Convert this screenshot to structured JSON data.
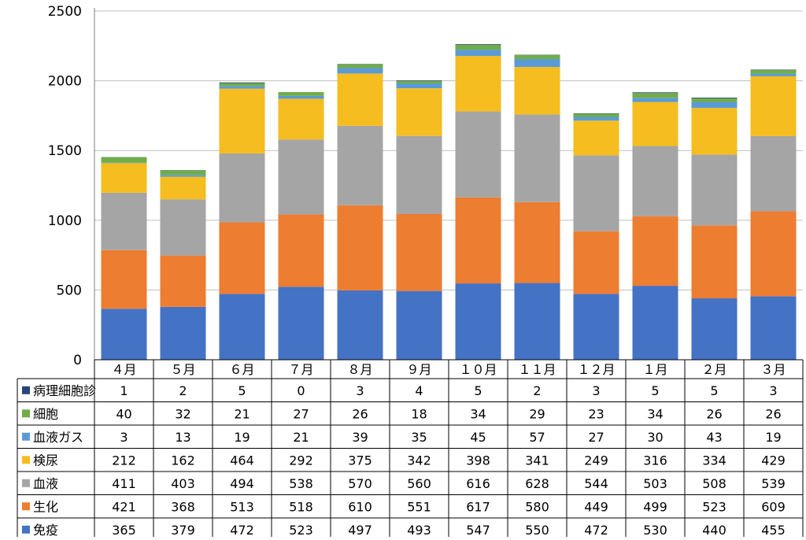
{
  "chart_data": {
    "type": "bar",
    "stacked": true,
    "title": "",
    "xlabel": "",
    "ylabel": "",
    "ylim": [
      0,
      2500
    ],
    "yticks": [
      0,
      500,
      1000,
      1500,
      2000,
      2500
    ],
    "grid": true,
    "legend_placement": "data-table-left",
    "categories": [
      "４月",
      "５月",
      "６月",
      "７月",
      "８月",
      "９月",
      "１０月",
      "１１月",
      "１２月",
      "１月",
      "２月",
      "３月"
    ],
    "series": [
      {
        "name": "免疫",
        "color": "#4472c4",
        "values": [
          365,
          379,
          472,
          523,
          497,
          493,
          547,
          550,
          472,
          530,
          440,
          455
        ]
      },
      {
        "name": "生化",
        "color": "#ed7d31",
        "values": [
          421,
          368,
          513,
          518,
          610,
          551,
          617,
          580,
          449,
          499,
          523,
          609
        ]
      },
      {
        "name": "血液",
        "color": "#a5a5a5",
        "values": [
          411,
          403,
          494,
          538,
          570,
          560,
          616,
          628,
          544,
          503,
          508,
          539
        ]
      },
      {
        "name": "検尿",
        "color": "#f5bd1f",
        "values": [
          212,
          162,
          464,
          292,
          375,
          342,
          398,
          341,
          249,
          316,
          334,
          429
        ]
      },
      {
        "name": "血液ガス",
        "color": "#5b9bd5",
        "values": [
          3,
          13,
          19,
          21,
          39,
          35,
          45,
          57,
          27,
          30,
          43,
          19
        ]
      },
      {
        "name": "細胞",
        "color": "#70ad47",
        "values": [
          40,
          32,
          21,
          27,
          26,
          18,
          34,
          29,
          23,
          34,
          26,
          26
        ]
      },
      {
        "name": "病理細胞診",
        "color": "#264478",
        "values": [
          1,
          2,
          5,
          0,
          3,
          4,
          5,
          2,
          3,
          5,
          5,
          3
        ]
      }
    ],
    "table_row_order": [
      "病理細胞診",
      "細胞",
      "血液ガス",
      "検尿",
      "血液",
      "生化",
      "免疫"
    ]
  }
}
